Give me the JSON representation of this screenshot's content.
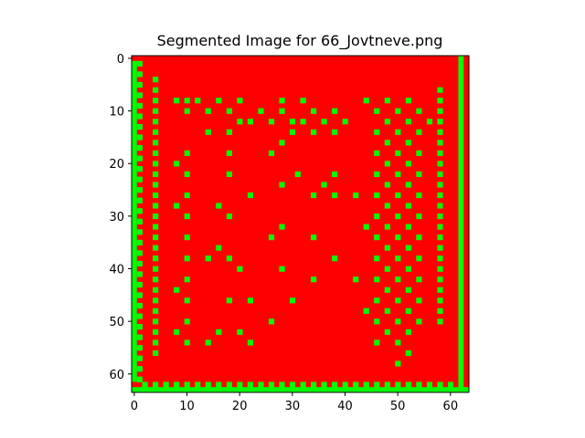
{
  "chart_data": {
    "type": "heatmap",
    "title": "Segmented Image for 66_Jovtneve.png",
    "xlabel": "",
    "ylabel": "",
    "grid_size": [
      64,
      64
    ],
    "xlim": [
      -0.5,
      63.5
    ],
    "ylim": [
      63.5,
      -0.5
    ],
    "x_ticks": [
      0,
      10,
      20,
      30,
      40,
      50,
      60
    ],
    "y_ticks": [
      0,
      10,
      20,
      30,
      40,
      50,
      60
    ],
    "background_class": {
      "name": "background",
      "color": "#ff0000"
    },
    "segment_class": {
      "name": "segment",
      "color": "#00ff00"
    },
    "border_segments": {
      "left_column_x": 0,
      "left_column_y_range": [
        1,
        61
      ],
      "solid_column_x": 62,
      "solid_column_y_range": [
        0,
        63
      ],
      "bottom_band_y": 63,
      "bottom_band_x_range": [
        0,
        63
      ]
    },
    "segment_cells": [
      [
        1,
        1
      ],
      [
        1,
        3
      ],
      [
        1,
        5
      ],
      [
        1,
        7
      ],
      [
        1,
        9
      ],
      [
        1,
        11
      ],
      [
        1,
        13
      ],
      [
        1,
        15
      ],
      [
        1,
        17
      ],
      [
        1,
        19
      ],
      [
        1,
        21
      ],
      [
        1,
        23
      ],
      [
        1,
        25
      ],
      [
        1,
        27
      ],
      [
        1,
        29
      ],
      [
        1,
        31
      ],
      [
        1,
        33
      ],
      [
        1,
        35
      ],
      [
        1,
        37
      ],
      [
        1,
        39
      ],
      [
        1,
        41
      ],
      [
        1,
        43
      ],
      [
        1,
        45
      ],
      [
        1,
        47
      ],
      [
        1,
        49
      ],
      [
        1,
        51
      ],
      [
        1,
        53
      ],
      [
        1,
        55
      ],
      [
        1,
        57
      ],
      [
        1,
        59
      ],
      [
        1,
        61
      ],
      [
        4,
        4
      ],
      [
        4,
        6
      ],
      [
        4,
        8
      ],
      [
        4,
        10
      ],
      [
        4,
        12
      ],
      [
        4,
        14
      ],
      [
        4,
        16
      ],
      [
        4,
        18
      ],
      [
        4,
        20
      ],
      [
        4,
        22
      ],
      [
        4,
        24
      ],
      [
        4,
        26
      ],
      [
        4,
        28
      ],
      [
        4,
        30
      ],
      [
        4,
        32
      ],
      [
        4,
        34
      ],
      [
        4,
        36
      ],
      [
        4,
        38
      ],
      [
        4,
        40
      ],
      [
        4,
        42
      ],
      [
        4,
        44
      ],
      [
        4,
        46
      ],
      [
        4,
        48
      ],
      [
        4,
        50
      ],
      [
        4,
        52
      ],
      [
        4,
        54
      ],
      [
        4,
        56
      ],
      [
        58,
        6
      ],
      [
        58,
        8
      ],
      [
        58,
        10
      ],
      [
        58,
        12
      ],
      [
        58,
        14
      ],
      [
        58,
        16
      ],
      [
        58,
        18
      ],
      [
        58,
        20
      ],
      [
        58,
        22
      ],
      [
        58,
        24
      ],
      [
        58,
        26
      ],
      [
        58,
        28
      ],
      [
        58,
        30
      ],
      [
        58,
        32
      ],
      [
        58,
        34
      ],
      [
        58,
        36
      ],
      [
        58,
        38
      ],
      [
        58,
        40
      ],
      [
        58,
        42
      ],
      [
        58,
        44
      ],
      [
        58,
        46
      ],
      [
        58,
        48
      ],
      [
        58,
        50
      ],
      [
        2,
        62
      ],
      [
        4,
        62
      ],
      [
        6,
        62
      ],
      [
        8,
        62
      ],
      [
        10,
        62
      ],
      [
        12,
        62
      ],
      [
        14,
        62
      ],
      [
        16,
        62
      ],
      [
        18,
        62
      ],
      [
        20,
        62
      ],
      [
        22,
        62
      ],
      [
        24,
        62
      ],
      [
        26,
        62
      ],
      [
        28,
        62
      ],
      [
        30,
        62
      ],
      [
        32,
        62
      ],
      [
        34,
        62
      ],
      [
        36,
        62
      ],
      [
        38,
        62
      ],
      [
        40,
        62
      ],
      [
        42,
        62
      ],
      [
        44,
        62
      ],
      [
        46,
        62
      ],
      [
        48,
        62
      ],
      [
        50,
        62
      ],
      [
        52,
        62
      ],
      [
        54,
        62
      ],
      [
        56,
        62
      ],
      [
        58,
        62
      ],
      [
        60,
        62
      ],
      [
        8,
        8
      ],
      [
        10,
        8
      ],
      [
        12,
        8
      ],
      [
        16,
        8
      ],
      [
        20,
        8
      ],
      [
        28,
        8
      ],
      [
        32,
        8
      ],
      [
        44,
        8
      ],
      [
        48,
        8
      ],
      [
        52,
        8
      ],
      [
        10,
        10
      ],
      [
        14,
        10
      ],
      [
        18,
        10
      ],
      [
        24,
        10
      ],
      [
        28,
        10
      ],
      [
        34,
        10
      ],
      [
        38,
        10
      ],
      [
        46,
        10
      ],
      [
        50,
        10
      ],
      [
        54,
        10
      ],
      [
        20,
        12
      ],
      [
        22,
        12
      ],
      [
        26,
        12
      ],
      [
        30,
        12
      ],
      [
        32,
        12
      ],
      [
        36,
        12
      ],
      [
        40,
        12
      ],
      [
        48,
        12
      ],
      [
        52,
        12
      ],
      [
        56,
        12
      ],
      [
        14,
        14
      ],
      [
        18,
        14
      ],
      [
        30,
        14
      ],
      [
        34,
        14
      ],
      [
        38,
        14
      ],
      [
        46,
        14
      ],
      [
        50,
        14
      ],
      [
        54,
        14
      ],
      [
        28,
        16
      ],
      [
        48,
        16
      ],
      [
        52,
        16
      ],
      [
        10,
        18
      ],
      [
        18,
        18
      ],
      [
        26,
        18
      ],
      [
        46,
        18
      ],
      [
        50,
        18
      ],
      [
        54,
        18
      ],
      [
        8,
        20
      ],
      [
        48,
        20
      ],
      [
        52,
        20
      ],
      [
        10,
        22
      ],
      [
        18,
        22
      ],
      [
        31,
        22
      ],
      [
        38,
        22
      ],
      [
        46,
        22
      ],
      [
        50,
        22
      ],
      [
        54,
        22
      ],
      [
        28,
        24
      ],
      [
        48,
        24
      ],
      [
        52,
        24
      ],
      [
        10,
        26
      ],
      [
        22,
        26
      ],
      [
        34,
        26
      ],
      [
        38,
        26
      ],
      [
        42,
        26
      ],
      [
        46,
        26
      ],
      [
        50,
        26
      ],
      [
        54,
        26
      ],
      [
        36,
        24
      ],
      [
        8,
        28
      ],
      [
        16,
        28
      ],
      [
        48,
        28
      ],
      [
        52,
        28
      ],
      [
        10,
        30
      ],
      [
        18,
        30
      ],
      [
        46,
        30
      ],
      [
        50,
        30
      ],
      [
        54,
        30
      ],
      [
        28,
        32
      ],
      [
        44,
        32
      ],
      [
        48,
        32
      ],
      [
        52,
        32
      ],
      [
        10,
        34
      ],
      [
        26,
        34
      ],
      [
        34,
        34
      ],
      [
        46,
        34
      ],
      [
        50,
        34
      ],
      [
        54,
        34
      ],
      [
        16,
        36
      ],
      [
        48,
        36
      ],
      [
        52,
        36
      ],
      [
        10,
        38
      ],
      [
        14,
        38
      ],
      [
        18,
        38
      ],
      [
        38,
        38
      ],
      [
        46,
        38
      ],
      [
        50,
        38
      ],
      [
        54,
        38
      ],
      [
        20,
        40
      ],
      [
        28,
        40
      ],
      [
        48,
        40
      ],
      [
        52,
        40
      ],
      [
        10,
        42
      ],
      [
        34,
        42
      ],
      [
        42,
        42
      ],
      [
        46,
        42
      ],
      [
        50,
        42
      ],
      [
        54,
        42
      ],
      [
        8,
        44
      ],
      [
        48,
        44
      ],
      [
        52,
        44
      ],
      [
        10,
        46
      ],
      [
        18,
        46
      ],
      [
        22,
        46
      ],
      [
        30,
        46
      ],
      [
        46,
        46
      ],
      [
        50,
        46
      ],
      [
        54,
        46
      ],
      [
        44,
        48
      ],
      [
        48,
        48
      ],
      [
        52,
        48
      ],
      [
        10,
        50
      ],
      [
        26,
        50
      ],
      [
        46,
        50
      ],
      [
        50,
        50
      ],
      [
        54,
        50
      ],
      [
        8,
        52
      ],
      [
        16,
        52
      ],
      [
        20,
        52
      ],
      [
        48,
        52
      ],
      [
        52,
        52
      ],
      [
        10,
        54
      ],
      [
        14,
        54
      ],
      [
        22,
        54
      ],
      [
        46,
        54
      ],
      [
        50,
        54
      ],
      [
        52,
        56
      ],
      [
        50,
        58
      ]
    ]
  }
}
